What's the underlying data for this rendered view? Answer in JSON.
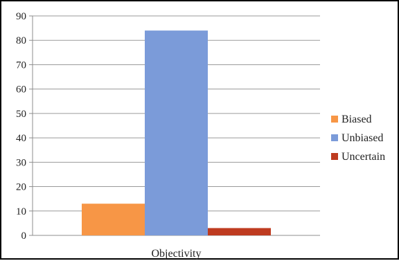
{
  "chart_data": {
    "type": "bar",
    "categories": [
      "Objectivity"
    ],
    "series": [
      {
        "name": "Biased",
        "values": [
          13
        ],
        "color": "#F79646"
      },
      {
        "name": "Unbiased",
        "values": [
          84
        ],
        "color": "#7B9BD9"
      },
      {
        "name": "Uncertain",
        "values": [
          3
        ],
        "color": "#BE3B20"
      }
    ],
    "ylim": [
      0,
      90
    ],
    "yticks": [
      0,
      10,
      20,
      30,
      40,
      50,
      60,
      70,
      80,
      90
    ],
    "title": "",
    "xlabel": "",
    "ylabel": "",
    "grid": true,
    "legend": "right"
  }
}
